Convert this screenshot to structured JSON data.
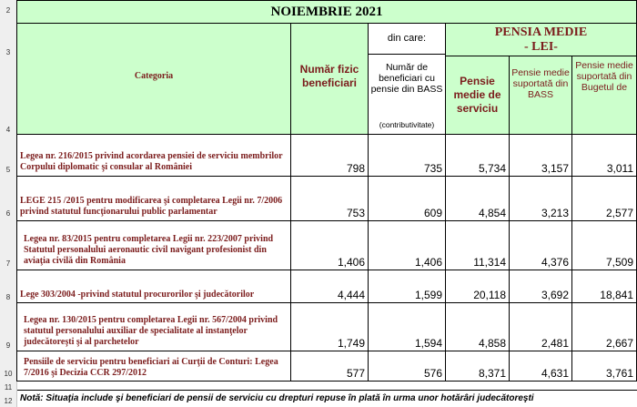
{
  "row_numbers": [
    "2",
    "3",
    "4",
    "5",
    "6",
    "7",
    "8",
    "9",
    "10",
    "11",
    "12"
  ],
  "title": "NOIEMBRIE 2021",
  "headers": {
    "categoria": "Categoria",
    "numar_fizic": "Număr fizic beneficiari",
    "din_care": "din care:",
    "numar_bass": "Număr de beneficiari cu pensie din BASS",
    "numar_bass_sub": "(contributivitate)",
    "pensia_medie": "PENSIA MEDIE",
    "lei": "- LEI-",
    "pensie_serviciu": "Pensie medie de serviciu",
    "pensie_bass": "Pensie medie suportată din BASS",
    "pensie_buget": "Pensie medie suportată din Bugetul de"
  },
  "rows": [
    {
      "category": "Legea nr. 216/2015 privind acordarea pensiei de serviciu membrilor Corpului diplomatic şi consular al României",
      "numar_fizic": "798",
      "numar_bass": "735",
      "pensie_serviciu": "5,734",
      "pensie_bass": "3,157",
      "pensie_buget": "3,011"
    },
    {
      "category": "LEGE 215 /2015 pentru modificarea şi completarea Legii nr. 7/2006 privind statutul funcţionarului public parlamentar",
      "numar_fizic": "753",
      "numar_bass": "609",
      "pensie_serviciu": "4,854",
      "pensie_bass": "3,213",
      "pensie_buget": "2,577"
    },
    {
      "category": "Legea nr. 83/2015 pentru completarea Legii nr. 223/2007 privind Statutul personalului aeronautic civil navigant profesionist din aviaţia civilă din România",
      "numar_fizic": "1,406",
      "numar_bass": "1,406",
      "pensie_serviciu": "11,314",
      "pensie_bass": "4,376",
      "pensie_buget": "7,509"
    },
    {
      "category": "Lege 303/2004 -privind statutul procurorilor şi judecătorilor",
      "numar_fizic": "4,444",
      "numar_bass": "1,599",
      "pensie_serviciu": "20,118",
      "pensie_bass": "3,692",
      "pensie_buget": "18,841"
    },
    {
      "category": "Legea nr. 130/2015 pentru completarea Legii nr. 567/2004 privind statutul personalului auxiliar de specialitate al instanţelor judecătoreşti şi al parchetelor",
      "numar_fizic": "1,749",
      "numar_bass": "1,594",
      "pensie_serviciu": "4,858",
      "pensie_bass": "2,481",
      "pensie_buget": "2,667"
    },
    {
      "category": "Pensiile de serviciu pentru beneficiari ai Curţii de Conturi: Legea 7/2016 şi Decizia CCR 297/2012",
      "numar_fizic": "577",
      "numar_bass": "576",
      "pensie_serviciu": "8,371",
      "pensie_bass": "4,631",
      "pensie_buget": "3,761"
    }
  ],
  "note": "Notă: Situaţia include şi beneficiari de pensii de serviciu cu drepturi repuse în plată în urma unor hotărâri judecătoreşti"
}
